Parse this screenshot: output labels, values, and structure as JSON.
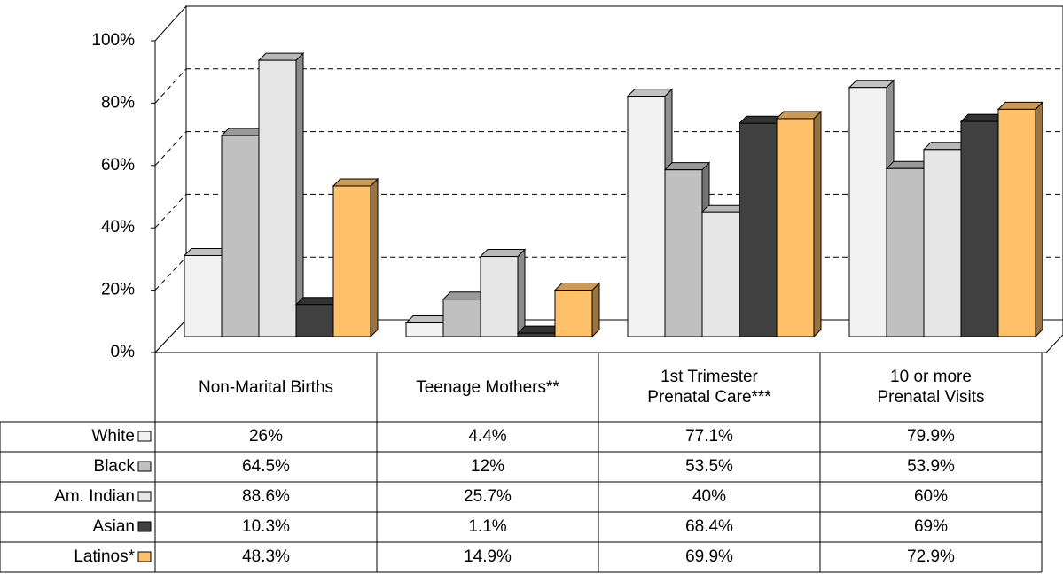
{
  "chart_data": {
    "type": "bar3d",
    "categories": [
      "Non-Marital Births",
      "Teenage Mothers**",
      "1st Trimester\nPrenatal Care***",
      "10 or more\nPrenatal Visits"
    ],
    "series": [
      {
        "name": "White",
        "color": "#f2f2f2",
        "values": [
          26,
          4.4,
          77.1,
          79.9
        ],
        "value_labels": [
          "26%",
          "4.4%",
          "77.1%",
          "79.9%"
        ]
      },
      {
        "name": "Black",
        "color": "#c0c0c0",
        "values": [
          64.5,
          12,
          53.5,
          53.9
        ],
        "value_labels": [
          "64.5%",
          "12%",
          "53.5%",
          "53.9%"
        ]
      },
      {
        "name": "Am. Indian",
        "color": "#e6e6e6",
        "values": [
          88.6,
          25.7,
          40,
          60
        ],
        "value_labels": [
          "88.6%",
          "25.7%",
          "40%",
          "60%"
        ]
      },
      {
        "name": "Asian",
        "color": "#404040",
        "values": [
          10.3,
          1.1,
          68.4,
          69
        ],
        "value_labels": [
          "10.3%",
          "1.1%",
          "68.4%",
          "69%"
        ]
      },
      {
        "name": "Latinos*",
        "color": "#ffc06a",
        "values": [
          48.3,
          14.9,
          69.9,
          72.9
        ],
        "value_labels": [
          "48.3%",
          "14.9%",
          "69.9%",
          "72.9%"
        ]
      }
    ],
    "ylim": [
      0,
      100
    ],
    "yticks": [
      {
        "value": 0,
        "label": "0%"
      },
      {
        "value": 20,
        "label": "20%"
      },
      {
        "value": 40,
        "label": "40%"
      },
      {
        "value": 60,
        "label": "60%"
      },
      {
        "value": 80,
        "label": "80%"
      },
      {
        "value": 100,
        "label": "100%"
      }
    ],
    "grid": true
  }
}
